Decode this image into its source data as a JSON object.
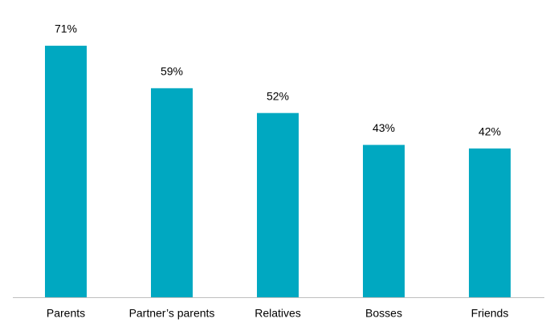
{
  "chart_data": {
    "type": "bar",
    "categories": [
      "Parents",
      "Partner’s parents",
      "Relatives",
      "Bosses",
      "Friends"
    ],
    "values": [
      71,
      59,
      52,
      43,
      42
    ],
    "value_labels": [
      "71%",
      "59%",
      "52%",
      "43%",
      "42%"
    ],
    "color": "#00a8c1"
  }
}
